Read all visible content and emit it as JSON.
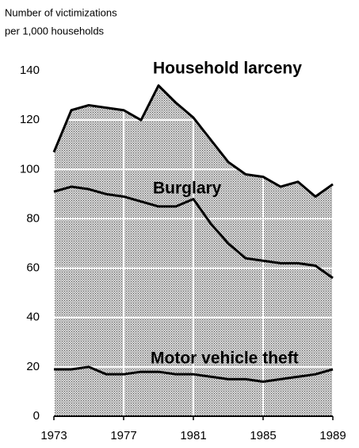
{
  "chart_data": {
    "type": "area",
    "ylabel_lines": [
      "Number of victimizations",
      "per 1,000 households"
    ],
    "x": [
      1973,
      1974,
      1975,
      1976,
      1977,
      1978,
      1979,
      1980,
      1981,
      1982,
      1983,
      1984,
      1985,
      1986,
      1987,
      1988,
      1989
    ],
    "series": [
      {
        "name": "Household larceny",
        "color": "#000000",
        "values": [
          107,
          124,
          126,
          125,
          124,
          120,
          134,
          127,
          121,
          112,
          103,
          98,
          97,
          93,
          95,
          89,
          94
        ]
      },
      {
        "name": "Burglary",
        "color": "#000000",
        "values": [
          91,
          93,
          92,
          90,
          89,
          87,
          85,
          85,
          88,
          78,
          70,
          64,
          63,
          62,
          62,
          61,
          56
        ]
      },
      {
        "name": "Motor vehicle theft",
        "color": "#000000",
        "values": [
          19,
          19,
          20,
          17,
          17,
          18,
          18,
          17,
          17,
          16,
          15,
          15,
          14,
          15,
          16,
          17,
          19
        ]
      }
    ],
    "xlim": [
      1973,
      1989
    ],
    "xticks": [
      1973,
      1977,
      1981,
      1985,
      1989
    ],
    "ylim": [
      0,
      140
    ],
    "yticks": [
      0,
      20,
      40,
      60,
      80,
      100,
      120,
      140
    ],
    "grid": true
  }
}
